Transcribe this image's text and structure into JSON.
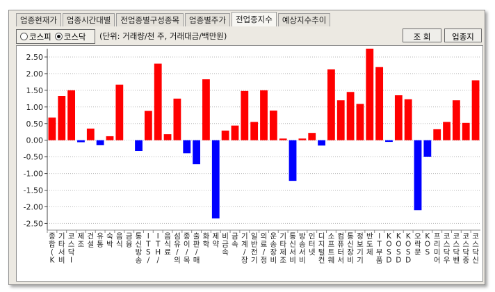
{
  "tabs": [
    {
      "label": "업종현재가"
    },
    {
      "label": "업종시간대별"
    },
    {
      "label": "전업종별구성종목"
    },
    {
      "label": "업종별주가"
    },
    {
      "label": "전업종지수"
    },
    {
      "label": "예상지수추이"
    }
  ],
  "market_radio": {
    "options": [
      "코스피",
      "코스닥"
    ],
    "selected": "코스닥"
  },
  "units_note": "(단위: 거래량/천 주, 거래대금/백만원)",
  "buttons": {
    "lookup": "조  회",
    "sector_index": "업종지수"
  },
  "colors": {
    "positive": "#ff0000",
    "negative": "#0000ff",
    "grid": "#b8b8b8"
  },
  "chart_data": {
    "type": "bar",
    "ylim": [
      -2.7,
      2.75
    ],
    "yticks": [
      "2.50",
      "2.00",
      "1.50",
      "1.00",
      "0.50",
      "0.00",
      "-0.50",
      "-1.00",
      "-1.50",
      "-2.00",
      "-2.50"
    ],
    "grid": "horizontal dotted",
    "categories": [
      "종합(K",
      "기타서비",
      "코스닥I",
      "제조",
      "건설",
      "유통",
      "숙박",
      "음식",
      "금융",
      "통신방송",
      "IT S/",
      "IT H/",
      "음식료",
      "섬유/의",
      "종이/목",
      "출판/매",
      "화학",
      "제약",
      "비금속",
      "금속",
      "기계/장",
      "일반전기",
      "의료/정",
      "운송장비",
      "기타제조",
      "통신서비",
      "방송서비",
      "인터넷",
      "디지털컨",
      "소프트웨",
      "컴퓨터서",
      "통신장비",
      "정보기기",
      "반도체",
      "IT부품",
      "KOSD",
      "KOSD",
      "KOSD",
      "오락문",
      "KOS",
      "프리미어",
      "코스닥우",
      "코스닥벤",
      "코스닥중",
      "코스닥신"
    ],
    "values": [
      0.68,
      1.33,
      1.5,
      -0.06,
      0.35,
      -0.15,
      0.12,
      1.67,
      0.0,
      -0.32,
      0.88,
      2.3,
      0.18,
      1.25,
      -0.39,
      -0.72,
      1.83,
      -2.35,
      0.29,
      0.44,
      1.48,
      0.55,
      1.5,
      0.89,
      0.05,
      -1.22,
      0.05,
      0.22,
      -0.16,
      2.13,
      1.2,
      1.45,
      1.09,
      2.75,
      2.2,
      -0.05,
      1.35,
      1.23,
      -2.1,
      -0.5,
      0.33,
      0.55,
      1.2,
      0.52,
      1.8
    ]
  }
}
